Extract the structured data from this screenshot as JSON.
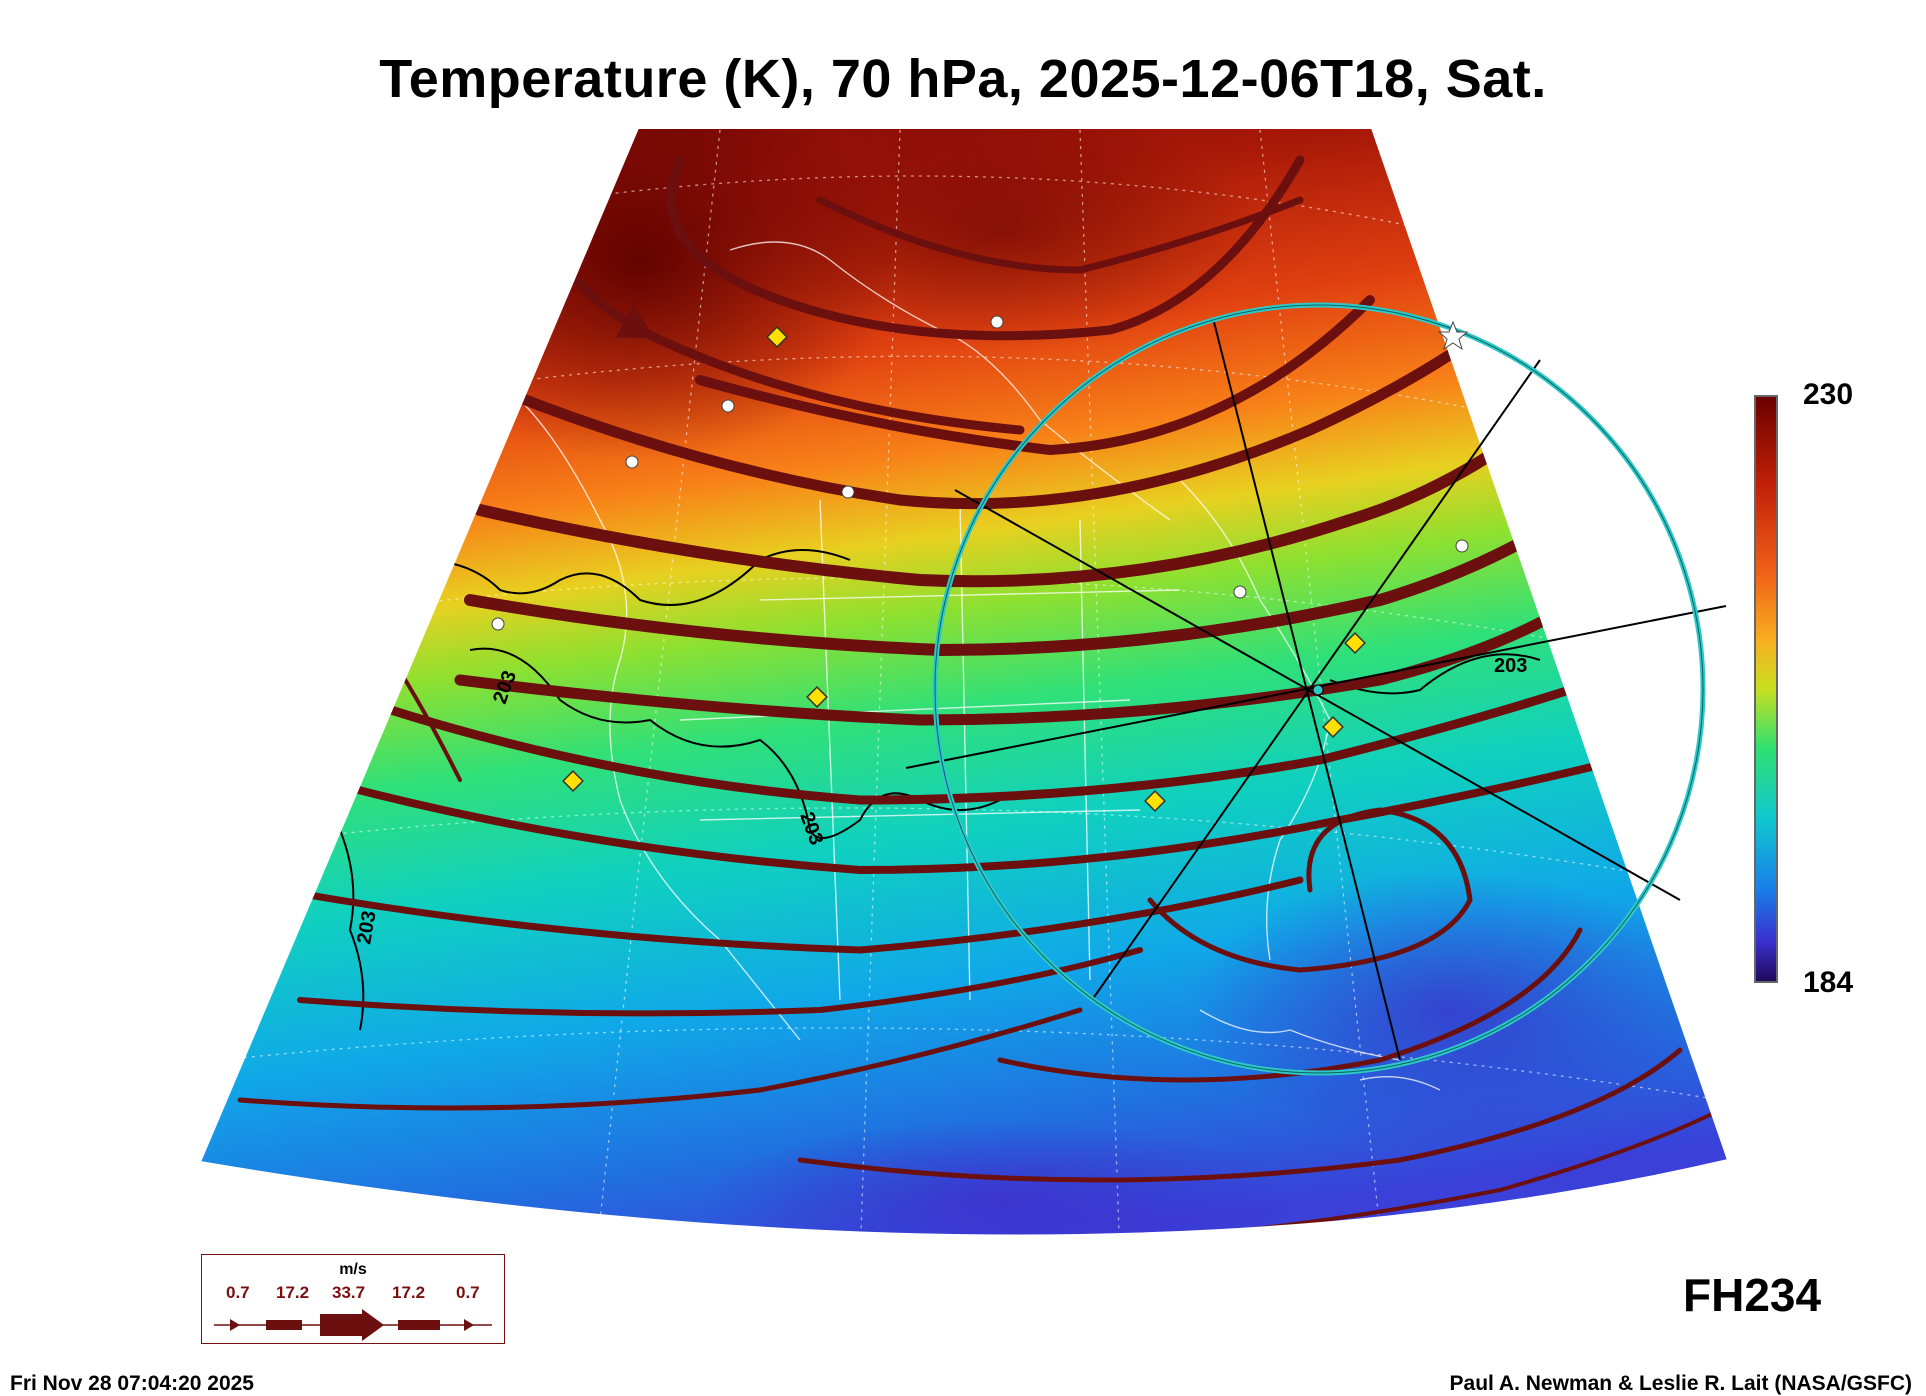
{
  "title": "Temperature (K), 70 hPa, 2025-12-06T18, Sat.",
  "colorbar": {
    "max": "230",
    "min": "184"
  },
  "contour_label": "203",
  "forecast_hour": "FH234",
  "legend": {
    "unit": "m/s",
    "speeds": [
      "0.7",
      "17.2",
      "33.7",
      "17.2",
      "0.7"
    ]
  },
  "footer": {
    "timestamp": "Fri Nov 28 07:04:20 2025",
    "credit": "Paul A. Newman & Leslie R. Lait (NASA/GSFC)"
  },
  "colors": {
    "warm_max": "#6b0000",
    "cold_min": "#2a0a88",
    "streamline": "#6b0f0f",
    "circle": "#2ec8c8",
    "marker": "#ffe000"
  }
}
